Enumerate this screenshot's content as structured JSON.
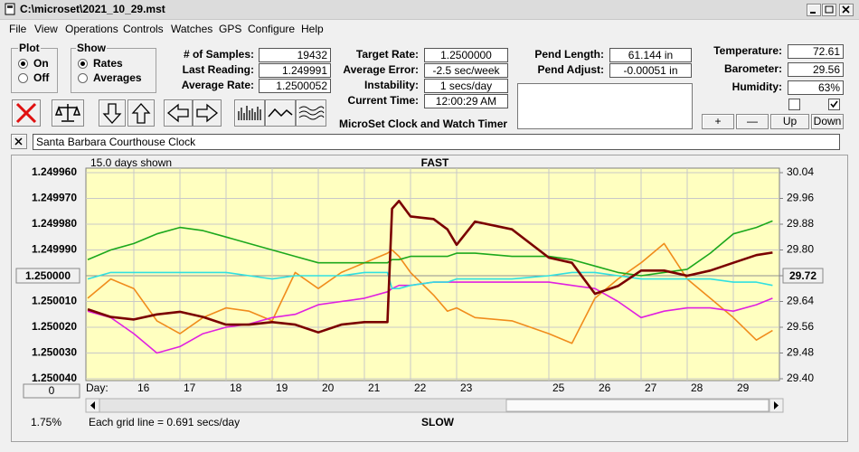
{
  "window": {
    "title": "C:\\microset\\2021_10_29.mst",
    "menu": [
      "File",
      "View",
      "Operations",
      "Controls",
      "Watches",
      "GPS",
      "Configure",
      "Help"
    ]
  },
  "plot_group": {
    "title": "Plot",
    "options": [
      "On",
      "Off"
    ]
  },
  "show_group": {
    "title": "Show",
    "options": [
      "Rates",
      "Averages"
    ]
  },
  "readouts_left": [
    {
      "label": "# of Samples:",
      "value": "19432"
    },
    {
      "label": "Last Reading:",
      "value": "1.249991"
    },
    {
      "label": "Average Rate:",
      "value": "1.2500052"
    }
  ],
  "readouts_mid": [
    {
      "label": "Target Rate:",
      "value": "1.2500000"
    },
    {
      "label": "Average Error:",
      "value": "-2.5 sec/week"
    },
    {
      "label": "Instability:",
      "value": "1 secs/day"
    },
    {
      "label": "Current Time:",
      "value": "12:00:29 AM"
    }
  ],
  "pend": [
    {
      "label": "Pend Length:",
      "value": "61.144 in"
    },
    {
      "label": "Pend Adjust:",
      "value": "-0.00051 in"
    }
  ],
  "environment": [
    {
      "label": "Temperature:",
      "value": "72.61"
    },
    {
      "label": "Barometer:",
      "value": "29.56"
    },
    {
      "label": "Humidity:",
      "value": "63%"
    }
  ],
  "app_name": "MicroSet Clock and Watch Timer",
  "adjust_buttons": [
    "+",
    "—",
    "Up",
    "Down"
  ],
  "clock_name": "Santa Barbara Courthouse Clock",
  "chart_data": {
    "type": "line",
    "days_shown": "15.0 days shown",
    "top_label": "FAST",
    "bottom_label": "SLOW",
    "x_label": "Day:",
    "footer": "Each grid line = 0.691 secs/day",
    "zoom": "1.75%",
    "scroll_button": "0",
    "grid": true,
    "x": [
      15,
      15.5,
      16,
      16.5,
      17,
      17.5,
      18,
      18.5,
      19,
      19.5,
      20,
      20.5,
      21,
      21.5,
      21.6,
      21.75,
      22,
      22.5,
      22.8,
      23,
      23.4,
      24.2,
      25,
      25.5,
      26,
      26.5,
      27,
      27.5,
      28,
      28.5,
      29,
      29.5,
      29.85
    ],
    "xlim": [
      15,
      30
    ],
    "xticks": [
      16,
      17,
      18,
      19,
      20,
      21,
      22,
      23,
      25,
      26,
      27,
      28,
      29
    ],
    "ylim": [
      1.25004,
      1.24996
    ],
    "yticks": [
      {
        "value": 1.24996,
        "label": "1.249960"
      },
      {
        "value": 1.24997,
        "label": "1.249970"
      },
      {
        "value": 1.24998,
        "label": "1.249980"
      },
      {
        "value": 1.24999,
        "label": "1.249990"
      },
      {
        "value": 1.25,
        "label": "1.250000"
      },
      {
        "value": 1.25001,
        "label": "1.250010"
      },
      {
        "value": 1.25002,
        "label": "1.250020"
      },
      {
        "value": 1.25003,
        "label": "1.250030"
      },
      {
        "value": 1.25004,
        "label": "1.250040"
      }
    ],
    "y2lim": [
      29.4,
      30.04
    ],
    "y2ticks": [
      30.04,
      29.96,
      29.88,
      {
        "value": 29.8,
        "label": "29.80"
      },
      29.72,
      29.64,
      29.56,
      29.48,
      {
        "value": 29.4,
        "label": "29.40"
      }
    ],
    "series": [
      {
        "name": "Barometer",
        "color": "#f08c1c",
        "axis": "y2",
        "values": [
          29.65,
          29.71,
          29.68,
          29.58,
          29.54,
          29.59,
          29.62,
          29.61,
          29.58,
          29.73,
          29.68,
          29.73,
          29.76,
          29.79,
          29.8,
          29.78,
          29.73,
          29.66,
          29.61,
          29.62,
          29.59,
          29.58,
          29.54,
          29.51,
          29.65,
          29.71,
          29.76,
          29.82,
          29.71,
          29.65,
          29.59,
          29.52,
          29.55
        ]
      },
      {
        "name": "Temperature",
        "color": "#1ca81c",
        "axis": "y2",
        "values": [
          29.77,
          29.8,
          29.82,
          29.85,
          29.87,
          29.86,
          29.84,
          29.82,
          29.8,
          29.78,
          29.76,
          29.76,
          29.76,
          29.76,
          29.77,
          29.77,
          29.78,
          29.78,
          29.78,
          29.79,
          29.79,
          29.78,
          29.78,
          29.77,
          29.75,
          29.73,
          29.72,
          29.73,
          29.74,
          29.79,
          29.85,
          29.87,
          29.89
        ]
      },
      {
        "name": "Humidity",
        "color": "#e020e0",
        "axis": "y2",
        "values": [
          29.61,
          29.59,
          29.54,
          29.48,
          29.5,
          29.54,
          29.56,
          29.57,
          29.59,
          29.6,
          29.63,
          29.64,
          29.65,
          29.67,
          29.68,
          29.69,
          29.69,
          29.7,
          29.7,
          29.7,
          29.7,
          29.7,
          29.7,
          29.69,
          29.68,
          29.64,
          29.59,
          29.61,
          29.62,
          29.62,
          29.61,
          29.63,
          29.65
        ]
      },
      {
        "name": "Amplitude",
        "color": "#30e0e0",
        "axis": "y2",
        "values": [
          29.71,
          29.73,
          29.73,
          29.73,
          29.73,
          29.73,
          29.73,
          29.72,
          29.71,
          29.72,
          29.72,
          29.72,
          29.73,
          29.73,
          29.68,
          29.68,
          29.69,
          29.7,
          29.7,
          29.71,
          29.71,
          29.71,
          29.72,
          29.73,
          29.73,
          29.72,
          29.71,
          29.71,
          29.71,
          29.71,
          29.7,
          29.7,
          29.69
        ]
      },
      {
        "name": "Clock rate",
        "color": "#7a0000",
        "values": [
          1.250013,
          1.250016,
          1.250017,
          1.250015,
          1.250014,
          1.250016,
          1.250019,
          1.250019,
          1.250018,
          1.250019,
          1.250022,
          1.250019,
          1.250018,
          1.250018,
          1.249974,
          1.249971,
          1.249977,
          1.249978,
          1.249982,
          1.249988,
          1.249979,
          1.249982,
          1.249993,
          1.249995,
          1.250007,
          1.250004,
          1.249998,
          1.249998,
          1.25,
          1.249998,
          1.249995,
          1.249992,
          1.249991
        ]
      }
    ]
  }
}
